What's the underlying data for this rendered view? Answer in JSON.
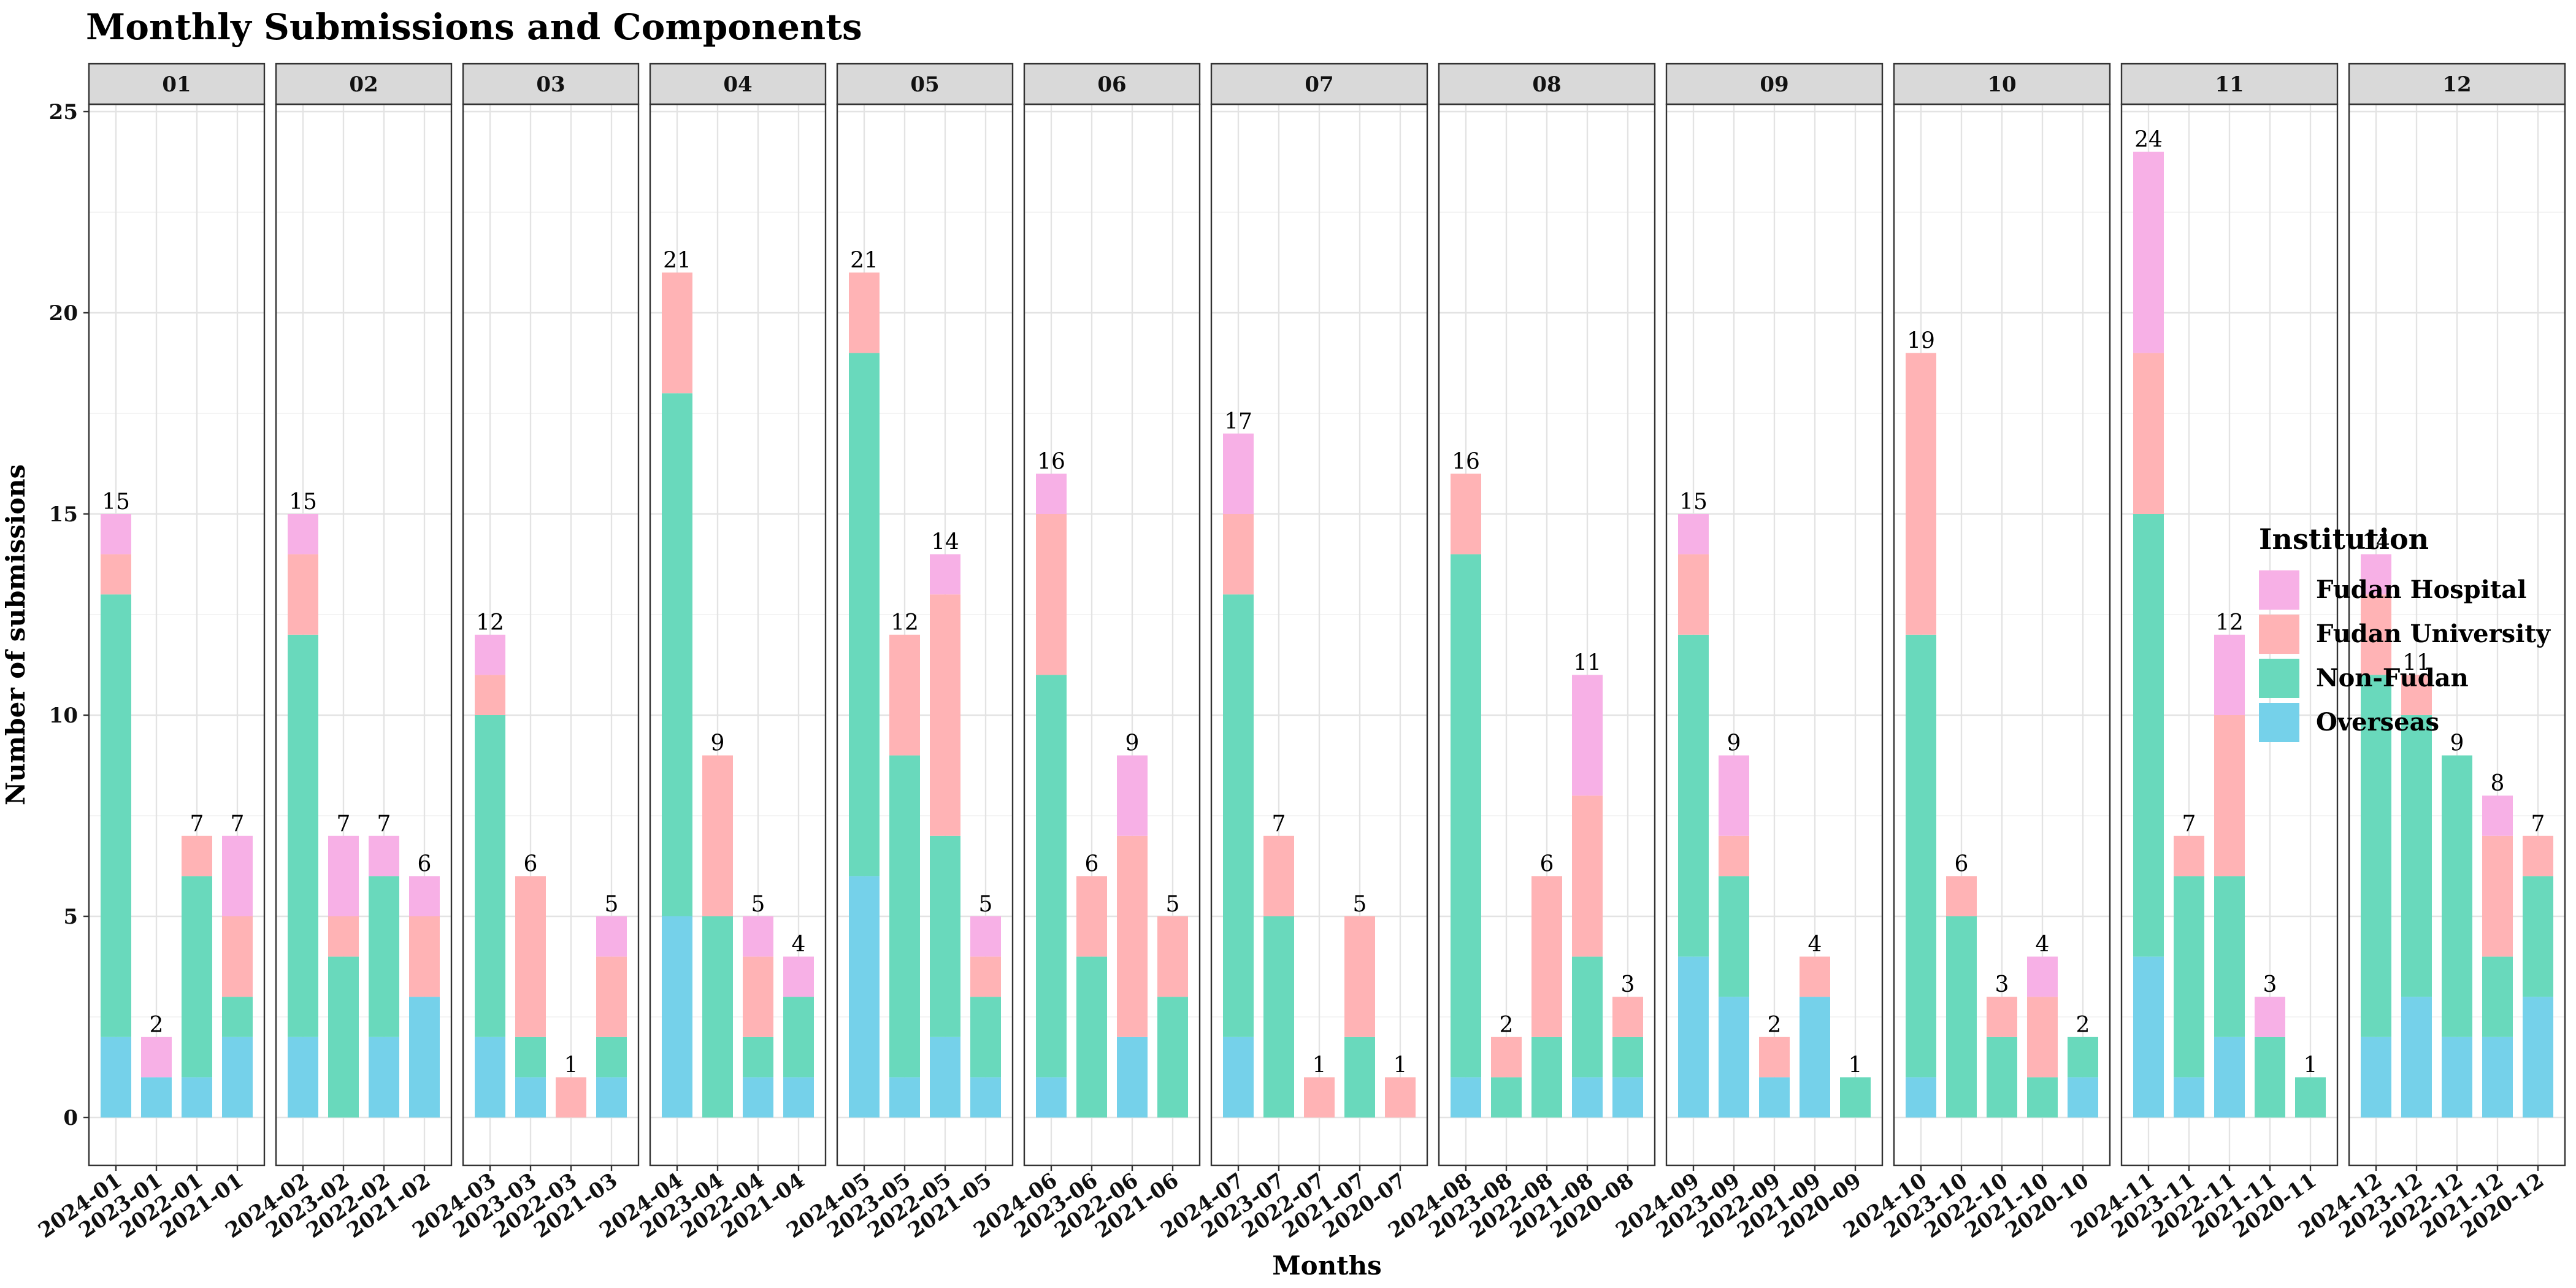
{
  "chart_data": {
    "type": "bar",
    "stacked": true,
    "title": "Monthly Submissions and Components",
    "xlabel": "Months",
    "ylabel": "Number of submissions",
    "ylim": [
      0,
      25
    ],
    "yticks": [
      0,
      5,
      10,
      15,
      20,
      25
    ],
    "grid": true,
    "legend": {
      "title": "Institution",
      "position": "right",
      "entries": [
        "Fudan Hospital",
        "Fudan University",
        "Non-Fudan",
        "Overseas"
      ]
    },
    "colors": {
      "Overseas": "#75D1EA",
      "Non-Fudan": "#69D9BC",
      "Fudan University": "#FFB3B5",
      "Fudan Hospital": "#F7B0E6"
    },
    "stack_order": [
      "Overseas",
      "Non-Fudan",
      "Fudan University",
      "Fudan Hospital"
    ],
    "facets": [
      {
        "label": "01",
        "bars": [
          {
            "x": "2024-01",
            "total": 15,
            "Overseas": 2,
            "Non-Fudan": 11,
            "Fudan University": 1,
            "Fudan Hospital": 1
          },
          {
            "x": "2023-01",
            "total": 2,
            "Overseas": 1,
            "Non-Fudan": 0,
            "Fudan University": 0,
            "Fudan Hospital": 1
          },
          {
            "x": "2022-01",
            "total": 7,
            "Overseas": 1,
            "Non-Fudan": 5,
            "Fudan University": 1,
            "Fudan Hospital": 0
          },
          {
            "x": "2021-01",
            "total": 7,
            "Overseas": 2,
            "Non-Fudan": 1,
            "Fudan University": 2,
            "Fudan Hospital": 2
          }
        ]
      },
      {
        "label": "02",
        "bars": [
          {
            "x": "2024-02",
            "total": 15,
            "Overseas": 2,
            "Non-Fudan": 10,
            "Fudan University": 2,
            "Fudan Hospital": 1
          },
          {
            "x": "2023-02",
            "total": 7,
            "Overseas": 0,
            "Non-Fudan": 4,
            "Fudan University": 1,
            "Fudan Hospital": 2
          },
          {
            "x": "2022-02",
            "total": 7,
            "Overseas": 2,
            "Non-Fudan": 4,
            "Fudan University": 0,
            "Fudan Hospital": 1
          },
          {
            "x": "2021-02",
            "total": 6,
            "Overseas": 3,
            "Non-Fudan": 0,
            "Fudan University": 2,
            "Fudan Hospital": 1
          }
        ]
      },
      {
        "label": "03",
        "bars": [
          {
            "x": "2024-03",
            "total": 12,
            "Overseas": 2,
            "Non-Fudan": 8,
            "Fudan University": 1,
            "Fudan Hospital": 1
          },
          {
            "x": "2023-03",
            "total": 6,
            "Overseas": 1,
            "Non-Fudan": 1,
            "Fudan University": 4,
            "Fudan Hospital": 0
          },
          {
            "x": "2022-03",
            "total": 1,
            "Overseas": 0,
            "Non-Fudan": 0,
            "Fudan University": 1,
            "Fudan Hospital": 0
          },
          {
            "x": "2021-03",
            "total": 5,
            "Overseas": 1,
            "Non-Fudan": 1,
            "Fudan University": 2,
            "Fudan Hospital": 1
          }
        ]
      },
      {
        "label": "04",
        "bars": [
          {
            "x": "2024-04",
            "total": 21,
            "Overseas": 5,
            "Non-Fudan": 13,
            "Fudan University": 3,
            "Fudan Hospital": 0
          },
          {
            "x": "2023-04",
            "total": 9,
            "Overseas": 0,
            "Non-Fudan": 5,
            "Fudan University": 4,
            "Fudan Hospital": 0
          },
          {
            "x": "2022-04",
            "total": 5,
            "Overseas": 1,
            "Non-Fudan": 1,
            "Fudan University": 2,
            "Fudan Hospital": 1
          },
          {
            "x": "2021-04",
            "total": 4,
            "Overseas": 1,
            "Non-Fudan": 2,
            "Fudan University": 0,
            "Fudan Hospital": 1
          }
        ]
      },
      {
        "label": "05",
        "bars": [
          {
            "x": "2024-05",
            "total": 21,
            "Overseas": 6,
            "Non-Fudan": 13,
            "Fudan University": 2,
            "Fudan Hospital": 0
          },
          {
            "x": "2023-05",
            "total": 12,
            "Overseas": 1,
            "Non-Fudan": 8,
            "Fudan University": 3,
            "Fudan Hospital": 0
          },
          {
            "x": "2022-05",
            "total": 14,
            "Overseas": 2,
            "Non-Fudan": 5,
            "Fudan University": 6,
            "Fudan Hospital": 1
          },
          {
            "x": "2021-05",
            "total": 5,
            "Overseas": 1,
            "Non-Fudan": 2,
            "Fudan University": 1,
            "Fudan Hospital": 1
          }
        ]
      },
      {
        "label": "06",
        "bars": [
          {
            "x": "2024-06",
            "total": 16,
            "Overseas": 1,
            "Non-Fudan": 10,
            "Fudan University": 4,
            "Fudan Hospital": 1
          },
          {
            "x": "2023-06",
            "total": 6,
            "Overseas": 0,
            "Non-Fudan": 4,
            "Fudan University": 2,
            "Fudan Hospital": 0
          },
          {
            "x": "2022-06",
            "total": 9,
            "Overseas": 2,
            "Non-Fudan": 0,
            "Fudan University": 5,
            "Fudan Hospital": 2
          },
          {
            "x": "2021-06",
            "total": 5,
            "Overseas": 0,
            "Non-Fudan": 3,
            "Fudan University": 2,
            "Fudan Hospital": 0
          }
        ]
      },
      {
        "label": "07",
        "bars": [
          {
            "x": "2024-07",
            "total": 17,
            "Overseas": 2,
            "Non-Fudan": 11,
            "Fudan University": 2,
            "Fudan Hospital": 2
          },
          {
            "x": "2023-07",
            "total": 7,
            "Overseas": 0,
            "Non-Fudan": 5,
            "Fudan University": 2,
            "Fudan Hospital": 0
          },
          {
            "x": "2022-07",
            "total": 1,
            "Overseas": 0,
            "Non-Fudan": 0,
            "Fudan University": 1,
            "Fudan Hospital": 0
          },
          {
            "x": "2021-07",
            "total": 5,
            "Overseas": 0,
            "Non-Fudan": 2,
            "Fudan University": 3,
            "Fudan Hospital": 0
          },
          {
            "x": "2020-07",
            "total": 1,
            "Overseas": 0,
            "Non-Fudan": 0,
            "Fudan University": 1,
            "Fudan Hospital": 0
          }
        ]
      },
      {
        "label": "08",
        "bars": [
          {
            "x": "2024-08",
            "total": 16,
            "Overseas": 1,
            "Non-Fudan": 13,
            "Fudan University": 2,
            "Fudan Hospital": 0
          },
          {
            "x": "2023-08",
            "total": 2,
            "Overseas": 0,
            "Non-Fudan": 1,
            "Fudan University": 1,
            "Fudan Hospital": 0
          },
          {
            "x": "2022-08",
            "total": 6,
            "Overseas": 0,
            "Non-Fudan": 2,
            "Fudan University": 4,
            "Fudan Hospital": 0
          },
          {
            "x": "2021-08",
            "total": 11,
            "Overseas": 1,
            "Non-Fudan": 3,
            "Fudan University": 4,
            "Fudan Hospital": 3
          },
          {
            "x": "2020-08",
            "total": 3,
            "Overseas": 1,
            "Non-Fudan": 1,
            "Fudan University": 1,
            "Fudan Hospital": 0
          }
        ]
      },
      {
        "label": "09",
        "bars": [
          {
            "x": "2024-09",
            "total": 15,
            "Overseas": 4,
            "Non-Fudan": 8,
            "Fudan University": 2,
            "Fudan Hospital": 1
          },
          {
            "x": "2023-09",
            "total": 9,
            "Overseas": 3,
            "Non-Fudan": 3,
            "Fudan University": 1,
            "Fudan Hospital": 2
          },
          {
            "x": "2022-09",
            "total": 2,
            "Overseas": 1,
            "Non-Fudan": 0,
            "Fudan University": 1,
            "Fudan Hospital": 0
          },
          {
            "x": "2021-09",
            "total": 4,
            "Overseas": 3,
            "Non-Fudan": 0,
            "Fudan University": 1,
            "Fudan Hospital": 0
          },
          {
            "x": "2020-09",
            "total": 1,
            "Overseas": 0,
            "Non-Fudan": 1,
            "Fudan University": 0,
            "Fudan Hospital": 0
          }
        ]
      },
      {
        "label": "10",
        "bars": [
          {
            "x": "2024-10",
            "total": 19,
            "Overseas": 1,
            "Non-Fudan": 11,
            "Fudan University": 7,
            "Fudan Hospital": 0
          },
          {
            "x": "2023-10",
            "total": 6,
            "Overseas": 0,
            "Non-Fudan": 5,
            "Fudan University": 1,
            "Fudan Hospital": 0
          },
          {
            "x": "2022-10",
            "total": 3,
            "Overseas": 0,
            "Non-Fudan": 2,
            "Fudan University": 1,
            "Fudan Hospital": 0
          },
          {
            "x": "2021-10",
            "total": 4,
            "Overseas": 0,
            "Non-Fudan": 1,
            "Fudan University": 2,
            "Fudan Hospital": 1
          },
          {
            "x": "2020-10",
            "total": 2,
            "Overseas": 1,
            "Non-Fudan": 1,
            "Fudan University": 0,
            "Fudan Hospital": 0
          }
        ]
      },
      {
        "label": "11",
        "bars": [
          {
            "x": "2024-11",
            "total": 24,
            "Overseas": 4,
            "Non-Fudan": 11,
            "Fudan University": 4,
            "Fudan Hospital": 5
          },
          {
            "x": "2023-11",
            "total": 7,
            "Overseas": 1,
            "Non-Fudan": 5,
            "Fudan University": 1,
            "Fudan Hospital": 0
          },
          {
            "x": "2022-11",
            "total": 12,
            "Overseas": 2,
            "Non-Fudan": 4,
            "Fudan University": 4,
            "Fudan Hospital": 2
          },
          {
            "x": "2021-11",
            "total": 3,
            "Overseas": 0,
            "Non-Fudan": 2,
            "Fudan University": 0,
            "Fudan Hospital": 1
          },
          {
            "x": "2020-11",
            "total": 1,
            "Overseas": 0,
            "Non-Fudan": 1,
            "Fudan University": 0,
            "Fudan Hospital": 0
          }
        ]
      },
      {
        "label": "12",
        "bars": [
          {
            "x": "2024-12",
            "total": 14,
            "Overseas": 2,
            "Non-Fudan": 9,
            "Fudan University": 2,
            "Fudan Hospital": 1
          },
          {
            "x": "2023-12",
            "total": 11,
            "Overseas": 3,
            "Non-Fudan": 7,
            "Fudan University": 1,
            "Fudan Hospital": 0
          },
          {
            "x": "2022-12",
            "total": 9,
            "Overseas": 2,
            "Non-Fudan": 7,
            "Fudan University": 0,
            "Fudan Hospital": 0
          },
          {
            "x": "2021-12",
            "total": 8,
            "Overseas": 2,
            "Non-Fudan": 2,
            "Fudan University": 3,
            "Fudan Hospital": 1
          },
          {
            "x": "2020-12",
            "total": 7,
            "Overseas": 3,
            "Non-Fudan": 3,
            "Fudan University": 1,
            "Fudan Hospital": 0
          }
        ]
      }
    ]
  }
}
